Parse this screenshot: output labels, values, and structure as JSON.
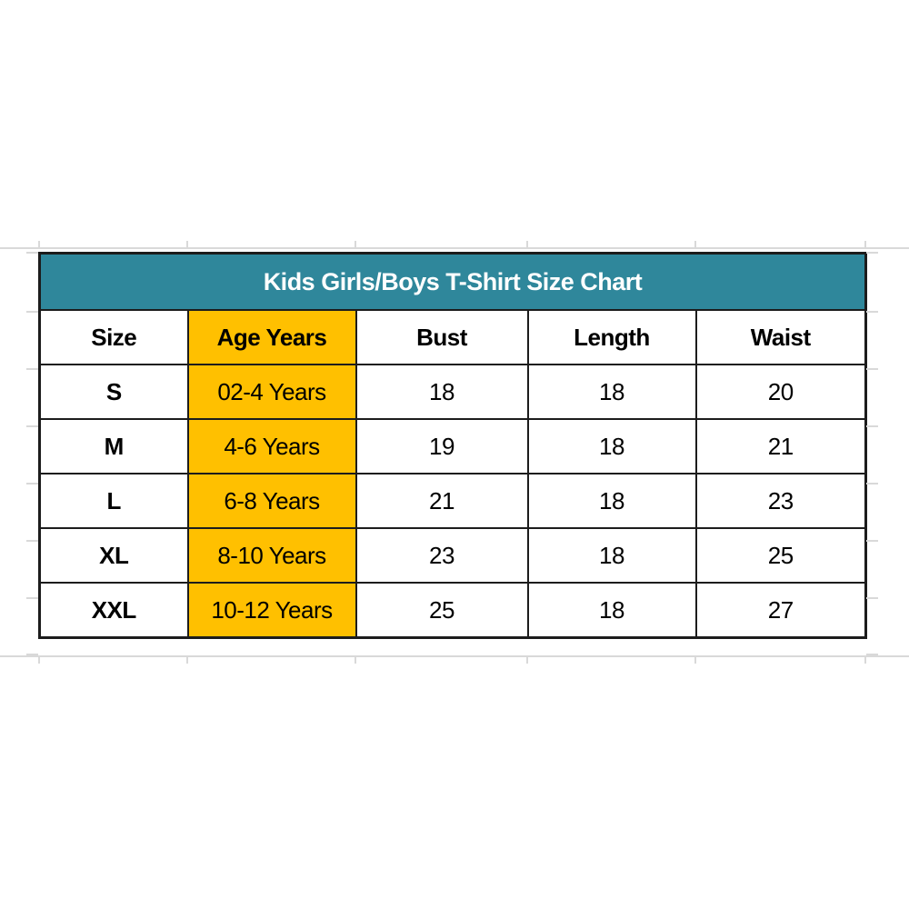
{
  "chart_data": {
    "type": "table",
    "title": "Kids Girls/Boys T-Shirt Size Chart",
    "columns": [
      "Size",
      "Age Years",
      "Bust",
      "Length",
      "Waist"
    ],
    "rows": [
      [
        "S",
        "02-4 Years",
        "18",
        "18",
        "20"
      ],
      [
        "M",
        "4-6 Years",
        "19",
        "18",
        "21"
      ],
      [
        "L",
        "6-8 Years",
        "21",
        "18",
        "23"
      ],
      [
        "XL",
        "8-10 Years",
        "23",
        "18",
        "25"
      ],
      [
        "XXL",
        "10-12 Years",
        "25",
        "18",
        "27"
      ]
    ],
    "highlighted_column": "Age Years",
    "layout_hints": {
      "title_row_merged": true,
      "gridlines_visible_outside_table": true
    },
    "colors": {
      "title_bg": "#2F879B",
      "title_text": "#FFFFFF",
      "highlight_bg": "#FFC000",
      "body_text": "#000000",
      "border": "#1C1C1C",
      "outer_gridline": "#D9D9D9"
    }
  }
}
